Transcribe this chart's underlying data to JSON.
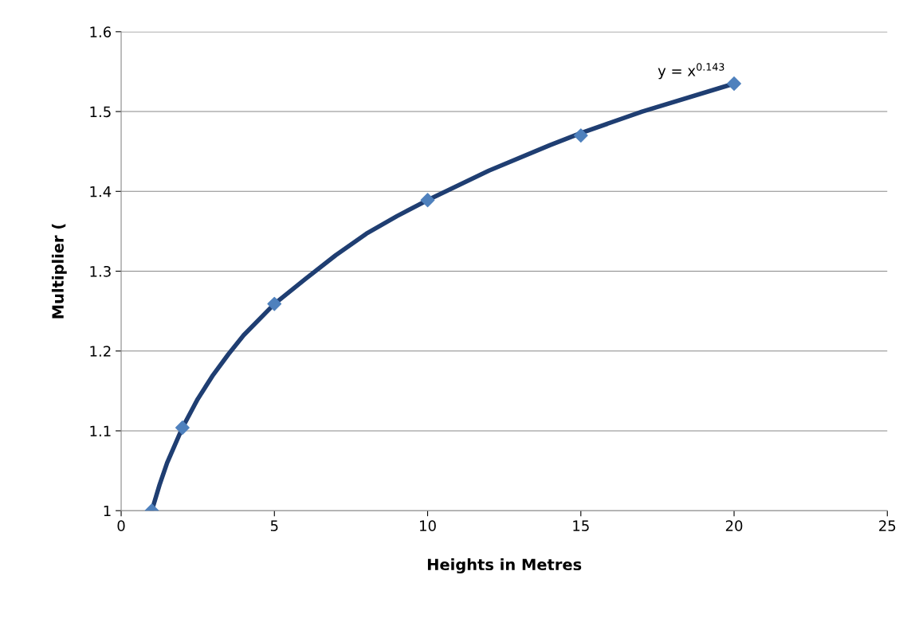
{
  "chart_data": {
    "type": "scatter",
    "xlabel": "Heights in Metres",
    "ylabel": "Multiplier (",
    "xlim": [
      0,
      25
    ],
    "xticks": [
      0,
      5,
      10,
      15,
      20,
      25
    ],
    "ylim": [
      1,
      1.6
    ],
    "yticks": [
      1,
      1.1,
      1.2,
      1.3,
      1.4,
      1.5,
      1.6
    ],
    "grid": "y",
    "series": [
      {
        "type": "line",
        "color": "#1f3e72",
        "marker": "none",
        "line_style": "solid",
        "x": [
          1,
          1.25,
          1.5,
          2,
          2.5,
          3,
          3.5,
          4,
          5,
          6,
          7,
          8,
          9,
          10,
          12,
          14,
          15,
          17,
          20
        ],
        "values": [
          1,
          1.032,
          1.06,
          1.104,
          1.14,
          1.17,
          1.196,
          1.22,
          1.259,
          1.29,
          1.32,
          1.347,
          1.369,
          1.389,
          1.426,
          1.458,
          1.473,
          1.5,
          1.535
        ]
      },
      {
        "color": "#4f81bd",
        "marker": "diamond",
        "x": [
          1,
          2,
          5,
          10,
          15,
          20
        ],
        "values": [
          1,
          1.104,
          1.259,
          1.389,
          1.47,
          1.535
        ]
      }
    ],
    "annotations": [
      {
        "text": "y = x$^{0.143}$",
        "x": 20,
        "y": 1.535
      }
    ]
  }
}
